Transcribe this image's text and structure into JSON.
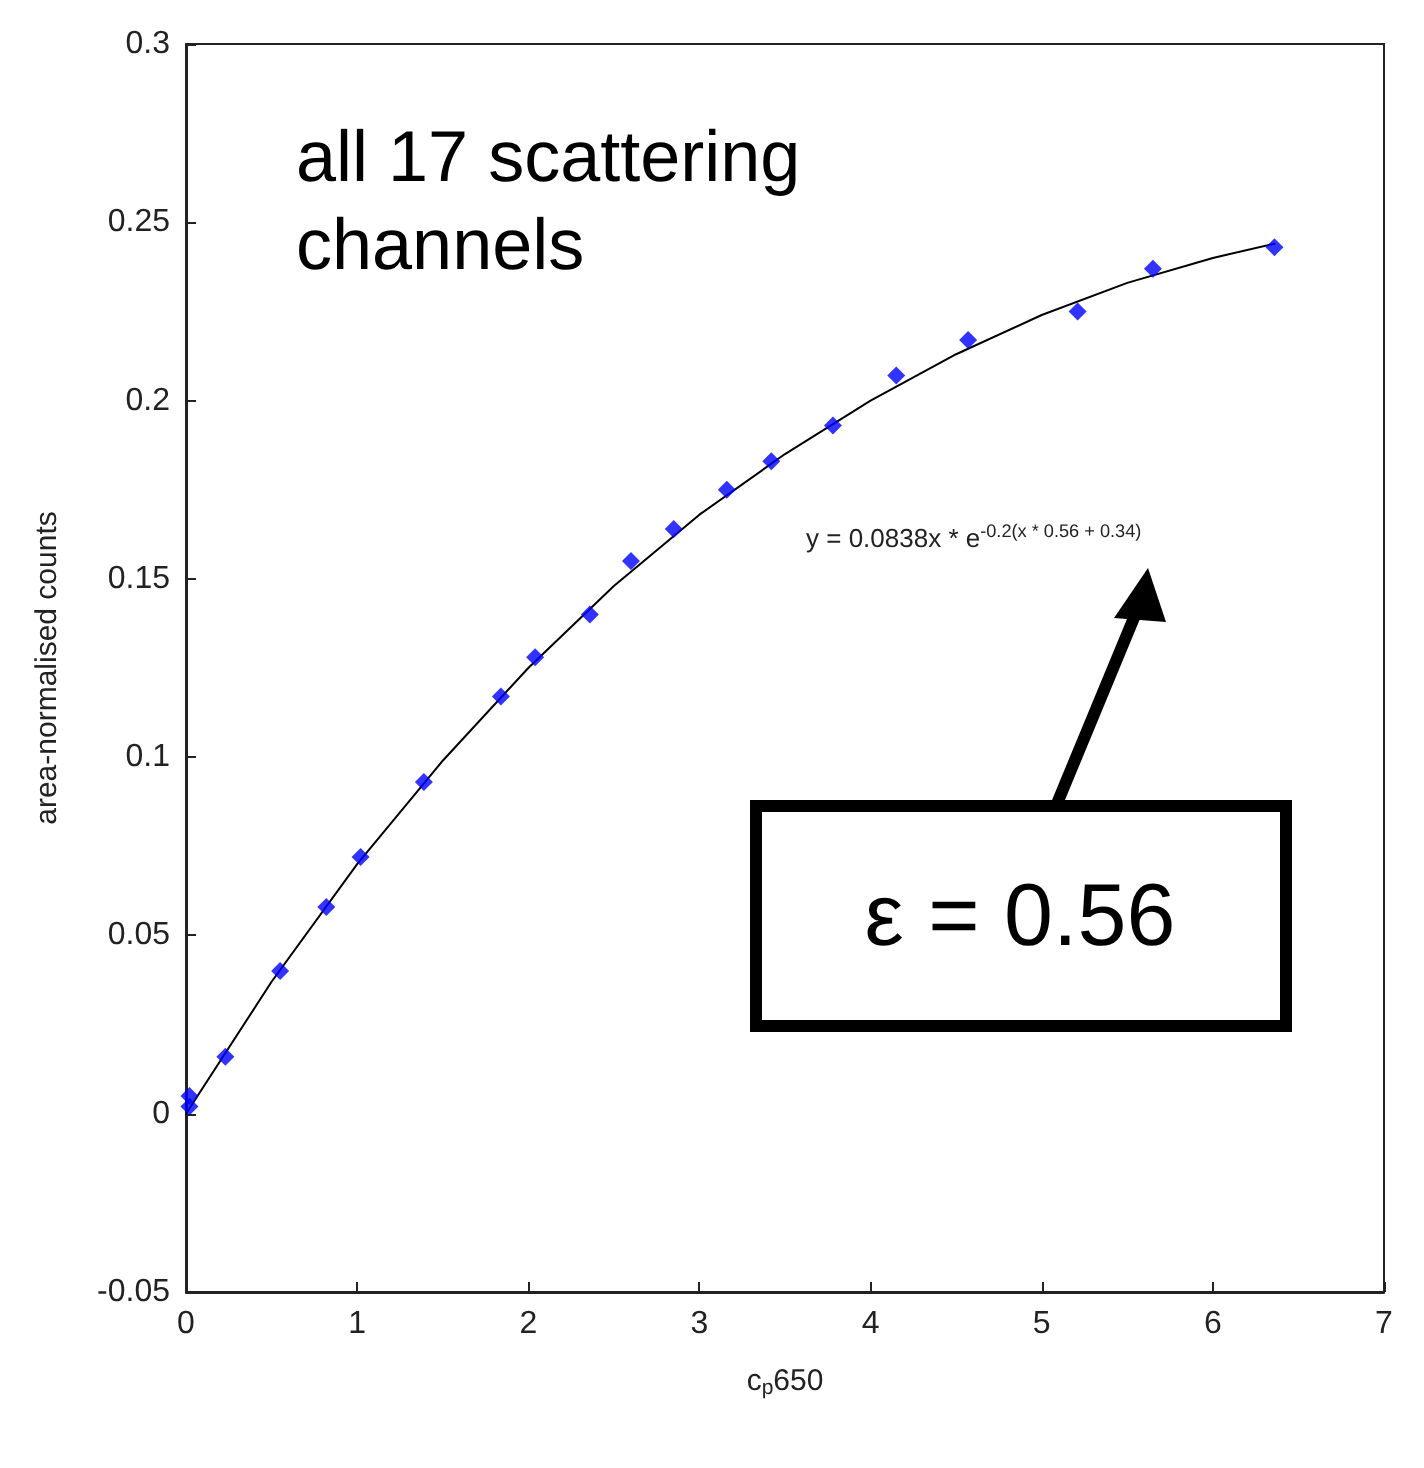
{
  "chart_data": {
    "type": "scatter",
    "xlabel": "c$_{p}$650",
    "ylabel": "area-normalised counts",
    "annotations": [
      "all 17 scattering channels",
      "y = 0.0838x * e$^{-0.2(x * 0.56 + 0.34)}$",
      "ε = 0.56"
    ],
    "xlim": [
      0,
      7
    ],
    "xticks": [
      0,
      1,
      2,
      3,
      4,
      5,
      6,
      7
    ],
    "ylim": [
      -0.05,
      0.3
    ],
    "yticks": [
      -0.05,
      0,
      0.05,
      0.1,
      0.15,
      0.2,
      0.25,
      0.3
    ],
    "grid": false,
    "marker": "diamond",
    "series": [
      {
        "color": "#0000ff",
        "x": [
          0.02,
          0.02,
          0.23,
          0.55,
          0.82,
          1.02,
          1.39,
          1.84,
          2.04,
          2.36,
          2.6,
          2.85,
          3.16,
          3.42,
          3.78,
          4.15,
          4.57,
          5.21,
          5.65,
          6.36
        ],
        "values": [
          0.002,
          0.005,
          0.016,
          0.04,
          0.058,
          0.072,
          0.093,
          0.117,
          0.128,
          0.14,
          0.155,
          0.164,
          0.175,
          0.183,
          0.193,
          0.207,
          0.217,
          0.225,
          0.237,
          0.243
        ]
      },
      {
        "type": "line",
        "color": "#000000",
        "marker": "none",
        "x": [
          0,
          0.5,
          1,
          1.5,
          2,
          2.5,
          3,
          3.5,
          4,
          4.5,
          5,
          5.5,
          6,
          6.36
        ],
        "values": [
          0,
          0.037,
          0.07,
          0.099,
          0.125,
          0.148,
          0.168,
          0.185,
          0.2,
          0.213,
          0.224,
          0.233,
          0.24,
          0.244
        ]
      }
    ]
  }
}
